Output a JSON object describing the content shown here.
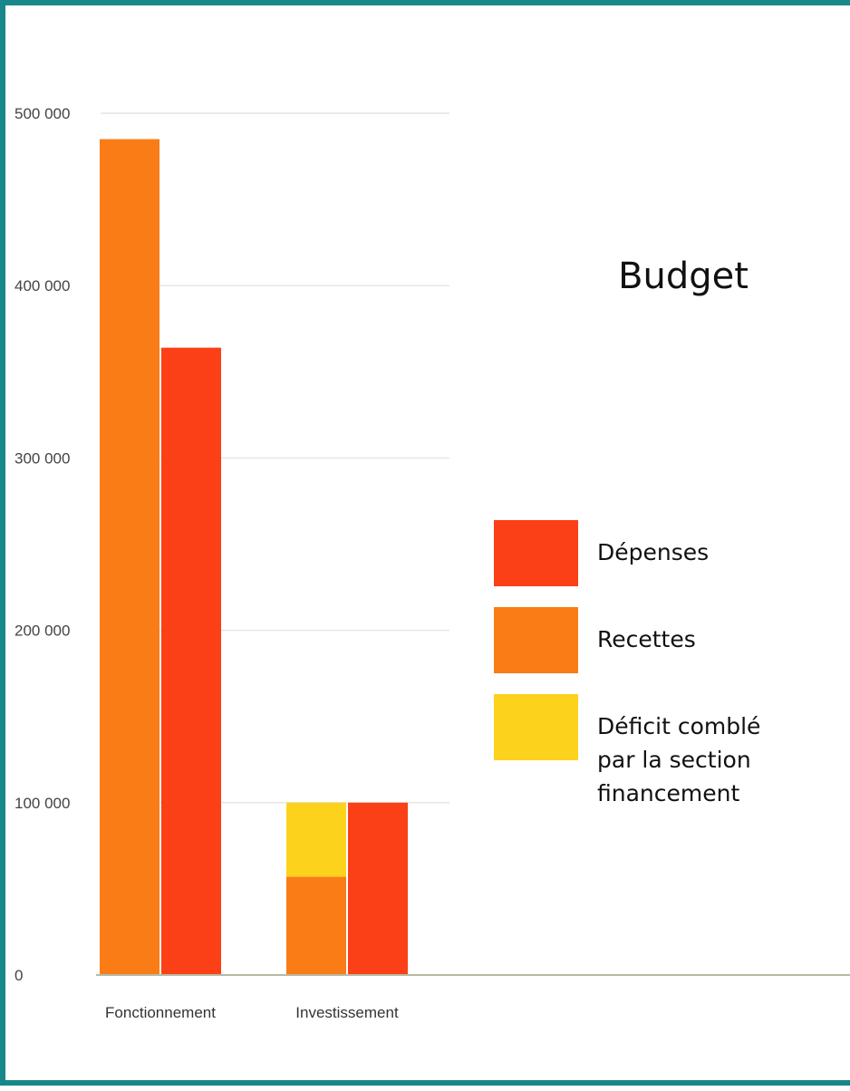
{
  "chart_data": {
    "type": "bar",
    "title": "Budget",
    "categories": [
      "Fonctionnement",
      "Investissement"
    ],
    "ylim": [
      0,
      500000
    ],
    "yticks": [
      0,
      100000,
      200000,
      300000,
      400000,
      500000
    ],
    "ytick_labels": [
      "0",
      "100 000",
      "200 000",
      "300 000",
      "400 000",
      "500 000"
    ],
    "series": [
      {
        "name": "Recettes",
        "stack": "a",
        "color": "#f97c17",
        "values": [
          485000,
          57000
        ]
      },
      {
        "name": "Déficit comblé par la section financement",
        "stack": "a",
        "color": "#fdd21c",
        "values": [
          0,
          43000
        ]
      },
      {
        "name": "Dépenses",
        "stack": "b",
        "color": "#fb3f16",
        "values": [
          364000,
          100000
        ]
      }
    ],
    "legend": {
      "position": "right",
      "items": [
        {
          "label": "Dépenses",
          "color": "#fb3f16",
          "lines": [
            "Dépenses"
          ]
        },
        {
          "label": "Recettes",
          "color": "#f97c17",
          "lines": [
            "Recettes"
          ]
        },
        {
          "label": "Déficit comblé par la section financement",
          "color": "#fdd21c",
          "lines": [
            "Déficit comblé",
            "par la section",
            "financement"
          ]
        }
      ]
    },
    "grid": true
  }
}
